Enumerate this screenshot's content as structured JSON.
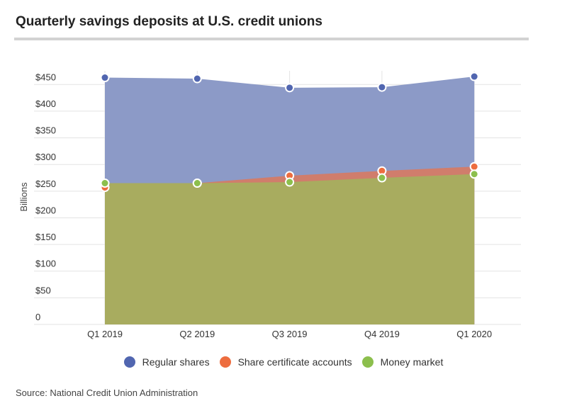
{
  "chart_data": {
    "type": "area",
    "title": "Quarterly savings deposits at U.S. credit unions",
    "ylabel": "Billions",
    "xlabel": "",
    "categories": [
      "Q1 2019",
      "Q2 2019",
      "Q3 2019",
      "Q4 2019",
      "Q1 2020"
    ],
    "ylim": [
      0,
      450
    ],
    "yticks": [
      0,
      50,
      100,
      150,
      200,
      250,
      300,
      350,
      400,
      450
    ],
    "ytick_labels": [
      "0",
      "$50",
      "$100",
      "$150",
      "$200",
      "$250",
      "$300",
      "$350",
      "$400",
      "$450"
    ],
    "grid": true,
    "legend_position": "bottom",
    "series": [
      {
        "name": "Regular shares",
        "color": "#5166b0",
        "fill": "#8a98c6",
        "values": [
          463,
          461,
          444,
          445,
          465
        ]
      },
      {
        "name": "Share certificate accounts",
        "color": "#ed6d3f",
        "fill": "#d07d6c",
        "values": [
          257,
          265,
          279,
          288,
          296
        ]
      },
      {
        "name": "Money market",
        "color": "#8cbf4d",
        "fill": "#a8ac5f",
        "values": [
          265,
          265,
          267,
          275,
          282
        ]
      }
    ],
    "source": "Source: National Credit Union Administration"
  }
}
